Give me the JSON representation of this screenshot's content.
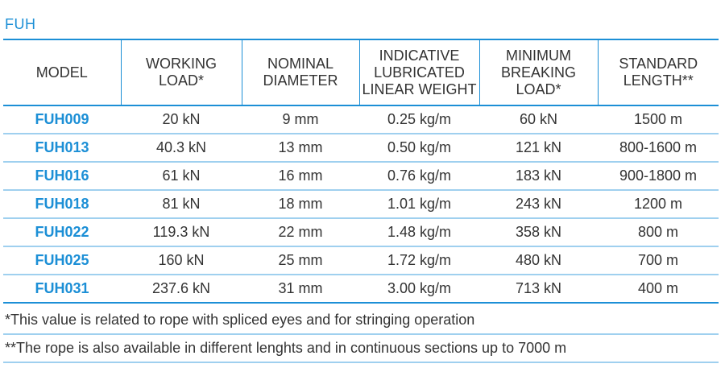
{
  "title": "FUH",
  "columns": [
    [
      "MODEL"
    ],
    [
      "WORKING",
      "LOAD*"
    ],
    [
      "NOMINAL",
      "DIAMETER"
    ],
    [
      "INDICATIVE",
      "LUBRICATED",
      "LINEAR WEIGHT"
    ],
    [
      "MINIMUM",
      "BREAKING",
      "LOAD*"
    ],
    [
      "STANDARD",
      "LENGTH**"
    ]
  ],
  "rows": [
    {
      "model": "FUH009",
      "working_load": "20 kN",
      "nominal_diameter": "9 mm",
      "linear_weight": "0.25 kg/m",
      "breaking_load": "60 kN",
      "standard_length": "1500 m"
    },
    {
      "model": "FUH013",
      "working_load": "40.3 kN",
      "nominal_diameter": "13 mm",
      "linear_weight": "0.50 kg/m",
      "breaking_load": "121 kN",
      "standard_length": "800-1600 m"
    },
    {
      "model": "FUH016",
      "working_load": "61 kN",
      "nominal_diameter": "16 mm",
      "linear_weight": "0.76 kg/m",
      "breaking_load": "183 kN",
      "standard_length": "900-1800 m"
    },
    {
      "model": "FUH018",
      "working_load": "81 kN",
      "nominal_diameter": "18 mm",
      "linear_weight": "1.01 kg/m",
      "breaking_load": "243 kN",
      "standard_length": "1200 m"
    },
    {
      "model": "FUH022",
      "working_load": "119.3 kN",
      "nominal_diameter": "22 mm",
      "linear_weight": "1.48 kg/m",
      "breaking_load": "358 kN",
      "standard_length": "800 m"
    },
    {
      "model": "FUH025",
      "working_load": "160 kN",
      "nominal_diameter": "25 mm",
      "linear_weight": "1.72 kg/m",
      "breaking_load": "480 kN",
      "standard_length": "700 m"
    },
    {
      "model": "FUH031",
      "working_load": "237.6 kN",
      "nominal_diameter": "31 mm",
      "linear_weight": "3.00 kg/m",
      "breaking_load": "713 kN",
      "standard_length": "400 m"
    }
  ],
  "notes": [
    "*This value is related to rope with spliced eyes and for stringing operation",
    "**The rope is also available in different lenghts and in continuous sections up to 7000 m"
  ],
  "colors": {
    "accent": "#1c8fd6",
    "row_divider": "#9fd0ef",
    "text": "#333333"
  }
}
